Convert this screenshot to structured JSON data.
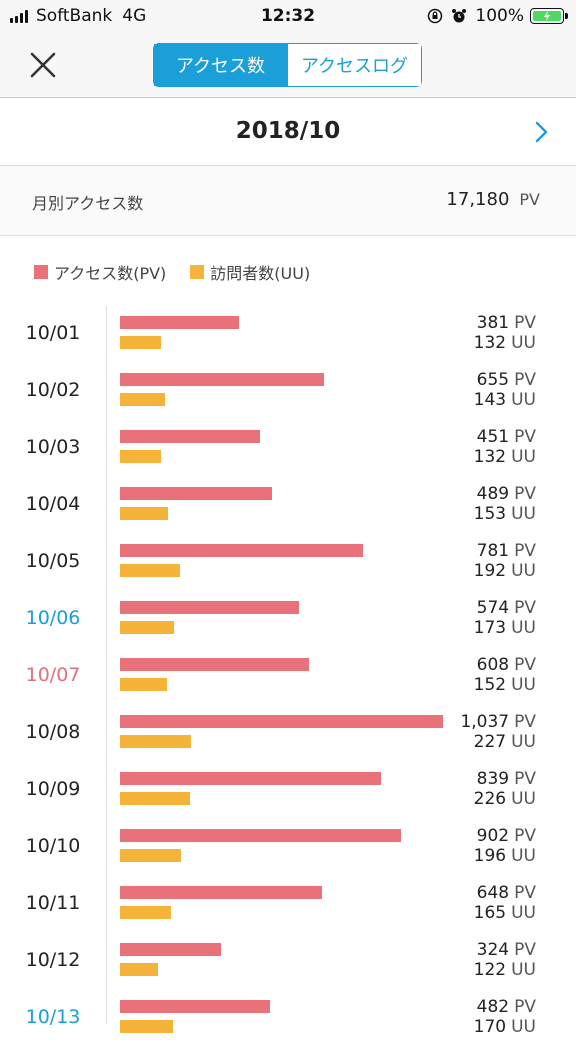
{
  "status_bar": {
    "carrier": "SoftBank",
    "network": "4G",
    "time": "12:32",
    "battery": "100%"
  },
  "nav": {
    "tabs": [
      {
        "label": "アクセス数",
        "active": true
      },
      {
        "label": "アクセスログ",
        "active": false
      }
    ]
  },
  "month": {
    "title": "2018/10"
  },
  "monthly": {
    "label": "月別アクセス数",
    "value": "17,180",
    "unit": "PV"
  },
  "legend": {
    "pv": "アクセス数(PV)",
    "uu": "訪問者数(UU)"
  },
  "colors": {
    "pv": "#e8717a",
    "uu": "#f6b33a",
    "accent": "#1a9fd9",
    "sunday": "#e07080"
  },
  "units": {
    "pv": "PV",
    "uu": "UU"
  },
  "chart_data": {
    "type": "bar",
    "categories": [
      "10/01",
      "10/02",
      "10/03",
      "10/04",
      "10/05",
      "10/06",
      "10/07",
      "10/08",
      "10/09",
      "10/10",
      "10/11",
      "10/12",
      "10/13"
    ],
    "day_type": [
      "",
      "",
      "",
      "",
      "",
      "sat",
      "sun",
      "",
      "",
      "",
      "",
      "",
      "sat"
    ],
    "series": [
      {
        "name": "アクセス数(PV)",
        "values": [
          381,
          655,
          451,
          489,
          781,
          574,
          608,
          1037,
          839,
          902,
          648,
          324,
          482
        ],
        "labels": [
          "381",
          "655",
          "451",
          "489",
          "781",
          "574",
          "608",
          "1,037",
          "839",
          "902",
          "648",
          "324",
          "482"
        ]
      },
      {
        "name": "訪問者数(UU)",
        "values": [
          132,
          143,
          132,
          153,
          192,
          173,
          152,
          227,
          226,
          196,
          165,
          122,
          170
        ],
        "labels": [
          "132",
          "143",
          "132",
          "153",
          "192",
          "173",
          "152",
          "227",
          "226",
          "196",
          "165",
          "122",
          "170"
        ]
      }
    ]
  }
}
